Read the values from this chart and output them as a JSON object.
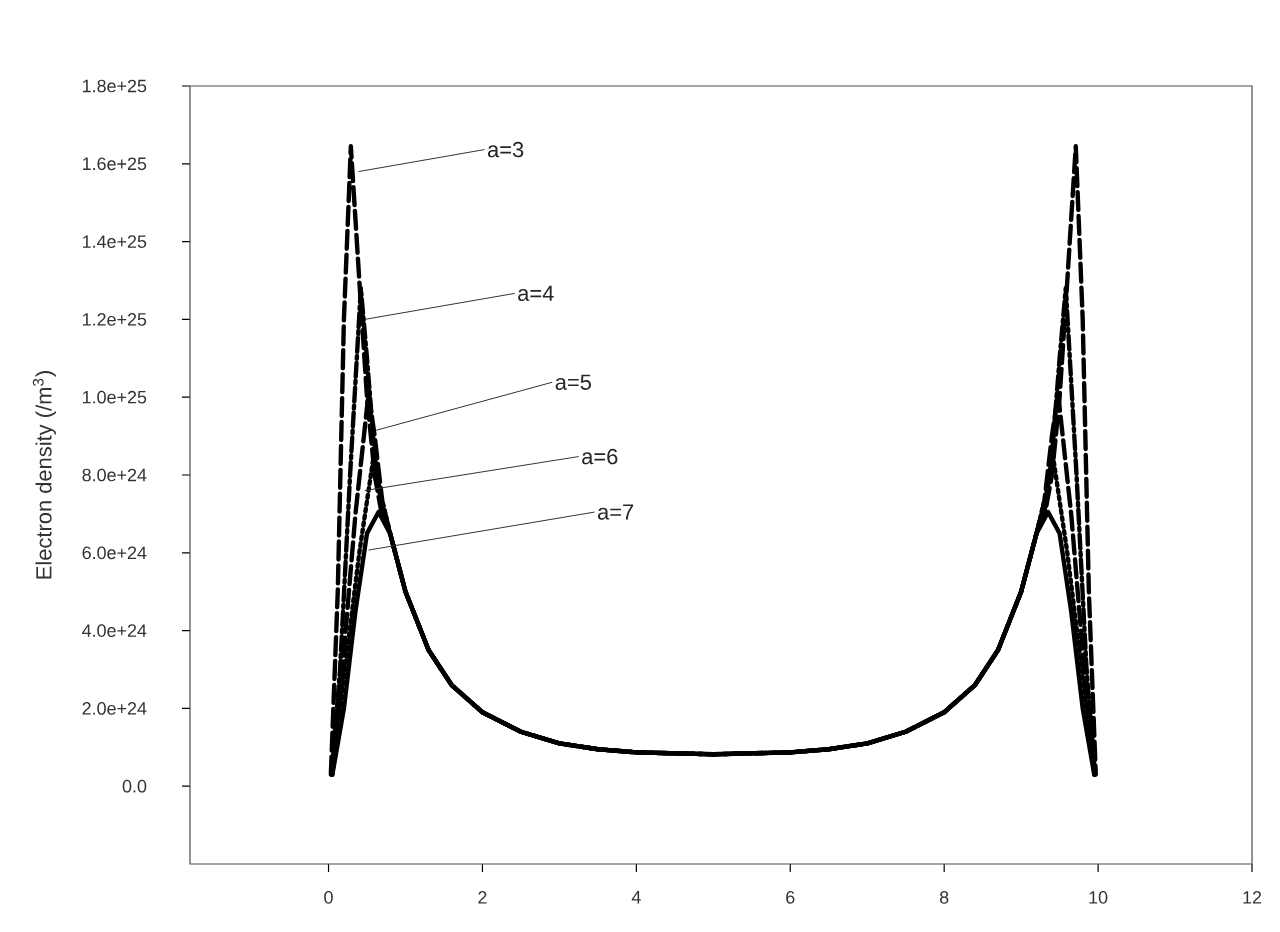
{
  "chart_data": {
    "type": "line",
    "ylabel": "Electron density (/m$^{3}$)",
    "xlim": [
      -1.8,
      12
    ],
    "xticks": [
      0,
      2,
      4,
      6,
      8,
      10,
      12
    ],
    "ylim": [
      -2e+24,
      1.8e+25
    ],
    "yticks": [
      {
        "value": 0,
        "label": "0.0"
      },
      {
        "value": 2e+24,
        "label": "2.0e+24"
      },
      {
        "value": 4e+24,
        "label": "4.0e+24"
      },
      {
        "value": 6e+24,
        "label": "6.0e+24"
      },
      {
        "value": 8e+24,
        "label": "8.0e+24"
      },
      {
        "value": 1e+25,
        "label": "1.0e+25"
      },
      {
        "value": 1.2e+25,
        "label": "1.2e+25"
      },
      {
        "value": 1.4e+25,
        "label": "1.4e+25"
      },
      {
        "value": 1.6e+25,
        "label": "1.6e+25"
      },
      {
        "value": 1.8e+25,
        "label": "1.8e+25"
      }
    ],
    "grid": false,
    "marker": "none",
    "series": [
      {
        "color": "#000000",
        "line_style": "dashed",
        "x": [
          0.03,
          0.12,
          0.2,
          0.29,
          0.4,
          0.5,
          0.6,
          0.7,
          0.8,
          1.0,
          1.3,
          1.6,
          2.0,
          2.5,
          3.0,
          3.5,
          4.0,
          5.0,
          6.0,
          6.5,
          7.0,
          7.5,
          8.0,
          8.4,
          8.7,
          9.0,
          9.2,
          9.3,
          9.4,
          9.5,
          9.6,
          9.71,
          9.8,
          9.88,
          9.97
        ],
        "values": [
          3e+23,
          5e+24,
          1.2e+25,
          1.645e+25,
          1.3e+25,
          1e+25,
          8e+24,
          6.9e+24,
          6.5e+24,
          5e+24,
          3.5e+24,
          2.6e+24,
          1.9e+24,
          1.4e+24,
          1.1e+24,
          9.5e+23,
          8.7e+23,
          8.2e+23,
          8.7e+23,
          9.5e+23,
          1.1e+24,
          1.4e+24,
          1.9e+24,
          2.6e+24,
          3.5e+24,
          5e+24,
          6.5e+24,
          6.9e+24,
          8e+24,
          1e+25,
          1.3e+25,
          1.645e+25,
          1.2e+25,
          5e+24,
          3e+23
        ]
      },
      {
        "color": "#000000",
        "line_style": "dashdot",
        "x": [
          0.04,
          0.15,
          0.28,
          0.42,
          0.5,
          0.6,
          0.7,
          0.8,
          1.0,
          1.3,
          1.6,
          2.0,
          2.5,
          3.0,
          3.5,
          4.0,
          5.0,
          6.0,
          6.5,
          7.0,
          7.5,
          8.0,
          8.4,
          8.7,
          9.0,
          9.2,
          9.3,
          9.4,
          9.5,
          9.58,
          9.72,
          9.85,
          9.96
        ],
        "values": [
          3e+23,
          3e+24,
          8e+24,
          1.28e+25,
          1.1e+25,
          8.5e+24,
          7e+24,
          6.5e+24,
          5e+24,
          3.5e+24,
          2.6e+24,
          1.9e+24,
          1.4e+24,
          1.1e+24,
          9.5e+23,
          8.7e+23,
          8.2e+23,
          8.7e+23,
          9.5e+23,
          1.1e+24,
          1.4e+24,
          1.9e+24,
          2.6e+24,
          3.5e+24,
          5e+24,
          6.5e+24,
          7e+24,
          8.5e+24,
          1.1e+25,
          1.28e+25,
          8e+24,
          3e+24,
          3e+23
        ]
      },
      {
        "color": "#000000",
        "line_style": "dashed",
        "x": [
          0.04,
          0.18,
          0.35,
          0.52,
          0.6,
          0.7,
          0.8,
          1.0,
          1.3,
          1.6,
          2.0,
          2.5,
          3.0,
          3.5,
          4.0,
          5.0,
          6.0,
          6.5,
          7.0,
          7.5,
          8.0,
          8.4,
          8.7,
          9.0,
          9.2,
          9.3,
          9.4,
          9.48,
          9.65,
          9.82,
          9.96
        ],
        "values": [
          3e+23,
          3e+24,
          7e+24,
          1.01e+25,
          9e+24,
          7.3e+24,
          6.5e+24,
          5e+24,
          3.5e+24,
          2.6e+24,
          1.9e+24,
          1.4e+24,
          1.1e+24,
          9.5e+23,
          8.7e+23,
          8.2e+23,
          8.7e+23,
          9.5e+23,
          1.1e+24,
          1.4e+24,
          1.9e+24,
          2.6e+24,
          3.5e+24,
          5e+24,
          6.5e+24,
          7.3e+24,
          9e+24,
          1.01e+25,
          7e+24,
          3e+24,
          3e+23
        ]
      },
      {
        "color": "#000000",
        "line_style": "dotted",
        "x": [
          0.05,
          0.2,
          0.4,
          0.58,
          0.68,
          0.8,
          1.0,
          1.3,
          1.6,
          2.0,
          2.5,
          3.0,
          3.5,
          4.0,
          5.0,
          6.0,
          6.5,
          7.0,
          7.5,
          8.0,
          8.4,
          8.7,
          9.0,
          9.2,
          9.32,
          9.42,
          9.6,
          9.8,
          9.95
        ],
        "values": [
          3e+23,
          2.8e+24,
          6e+24,
          8.4e+24,
          7.5e+24,
          6.5e+24,
          5e+24,
          3.5e+24,
          2.6e+24,
          1.9e+24,
          1.4e+24,
          1.1e+24,
          9.5e+23,
          8.7e+23,
          8.2e+23,
          8.7e+23,
          9.5e+23,
          1.1e+24,
          1.4e+24,
          1.9e+24,
          2.6e+24,
          3.5e+24,
          5e+24,
          6.5e+24,
          7.5e+24,
          8.4e+24,
          6e+24,
          2.8e+24,
          3e+23
        ]
      },
      {
        "color": "#000000",
        "line_style": "solid",
        "x": [
          0.05,
          0.2,
          0.35,
          0.5,
          0.65,
          0.8,
          1.0,
          1.3,
          1.6,
          2.0,
          2.5,
          3.0,
          3.5,
          4.0,
          5.0,
          6.0,
          6.5,
          7.0,
          7.5,
          8.0,
          8.4,
          8.7,
          9.0,
          9.2,
          9.35,
          9.5,
          9.65,
          9.8,
          9.95
        ],
        "values": [
          3e+23,
          2e+24,
          4.5e+24,
          6.5e+24,
          7.05e+24,
          6.5e+24,
          5e+24,
          3.5e+24,
          2.6e+24,
          1.9e+24,
          1.4e+24,
          1.1e+24,
          9.5e+23,
          8.7e+23,
          8.2e+23,
          8.7e+23,
          9.5e+23,
          1.1e+24,
          1.4e+24,
          1.9e+24,
          2.6e+24,
          3.5e+24,
          5e+24,
          6.5e+24,
          7.05e+24,
          6.5e+24,
          4.5e+24,
          2e+24,
          3e+23
        ]
      }
    ],
    "annotations": [
      {
        "text": "a=3",
        "x": 0.39,
        "y": 1.58e+25
      },
      {
        "text": "a=4",
        "x": 0.47,
        "y": 1.2e+25
      },
      {
        "text": "a=5",
        "x": 0.62,
        "y": 9.15e+24
      },
      {
        "text": "a=6",
        "x": 0.47,
        "y": 7.6e+24
      },
      {
        "text": "a=7",
        "x": 0.52,
        "y": 6.07e+24
      }
    ]
  }
}
